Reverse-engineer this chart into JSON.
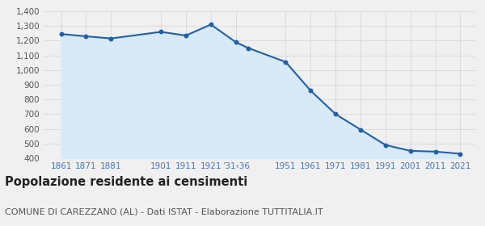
{
  "years": [
    1861,
    1871,
    1881,
    1901,
    1911,
    1921,
    1931,
    1936,
    1951,
    1961,
    1971,
    1981,
    1991,
    2001,
    2011,
    2021
  ],
  "population": [
    1245,
    1230,
    1215,
    1260,
    1235,
    1310,
    1190,
    1150,
    1055,
    860,
    700,
    595,
    490,
    450,
    445,
    430
  ],
  "line_color": "#2060a8",
  "fill_color": "#d8eaf7",
  "marker_color": "#2060a8",
  "bg_color": "#f0f0f0",
  "grid_color": "#d0d0d0",
  "ylim_min": 400,
  "ylim_max": 1400,
  "yticks": [
    400,
    500,
    600,
    700,
    800,
    900,
    1000,
    1100,
    1200,
    1300,
    1400
  ],
  "x_tick_positions": [
    1861,
    1871,
    1881,
    1901,
    1911,
    1921,
    1931,
    1951,
    1961,
    1971,
    1981,
    1991,
    2001,
    2011,
    2021
  ],
  "x_tick_labels": [
    "1861",
    "1871",
    "1881",
    "1901",
    "1911",
    "1921",
    "’31‹36",
    "1951",
    "1961",
    "1971",
    "1981",
    "1991",
    "2001",
    "2011",
    "2021"
  ],
  "xlim_min": 1854,
  "xlim_max": 2027,
  "title": "Popolazione residente ai censimenti",
  "subtitle": "COMUNE DI CAREZZANO (AL) - Dati ISTAT - Elaborazione TUTTITALIA.IT",
  "title_color": "#222222",
  "subtitle_color": "#555555",
  "tick_label_color": "#4472c4",
  "ytick_label_color": "#555555",
  "title_fontsize": 10.5,
  "subtitle_fontsize": 8,
  "tick_fontsize": 7.5,
  "line_width": 1.5,
  "marker_size": 18
}
